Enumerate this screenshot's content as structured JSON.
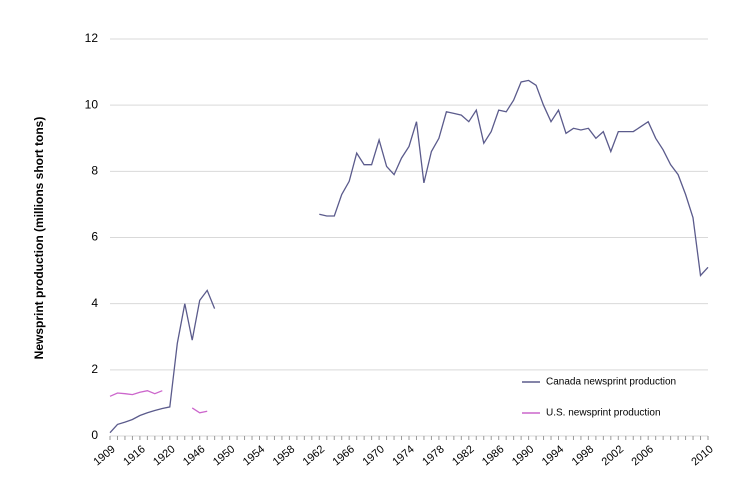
{
  "chart_data": {
    "type": "line",
    "y_label": "Newsprint  production (millions  short tons)",
    "categories": [
      "1909",
      null,
      null,
      null,
      "1916",
      null,
      null,
      null,
      "1920",
      null,
      null,
      null,
      "1946",
      null,
      null,
      null,
      "1950",
      null,
      null,
      null,
      "1954",
      null,
      null,
      null,
      "1958",
      null,
      null,
      null,
      "1962",
      null,
      null,
      null,
      "1966",
      null,
      null,
      null,
      "1970",
      null,
      null,
      null,
      "1974",
      null,
      null,
      null,
      "1978",
      null,
      null,
      null,
      "1982",
      null,
      null,
      null,
      "1986",
      null,
      null,
      null,
      "1990",
      null,
      null,
      null,
      "1994",
      null,
      null,
      null,
      "1998",
      null,
      null,
      null,
      "2002",
      null,
      null,
      null,
      "2006",
      null,
      null,
      null,
      null,
      null,
      null,
      null,
      "2010"
    ],
    "series": [
      {
        "name": "Canada newsprint production",
        "color": "#5b5b8c",
        "values": [
          0.1,
          0.35,
          0.42,
          0.5,
          0.62,
          0.7,
          0.77,
          0.83,
          0.88,
          2.8,
          4.0,
          2.9,
          4.1,
          4.4,
          3.85,
          null,
          null,
          null,
          null,
          null,
          null,
          null,
          null,
          null,
          null,
          null,
          null,
          null,
          6.7,
          6.65,
          6.65,
          7.3,
          7.7,
          8.55,
          8.2,
          8.2,
          8.95,
          8.15,
          7.9,
          8.4,
          8.75,
          9.5,
          7.65,
          8.6,
          9.0,
          9.8,
          9.75,
          9.7,
          9.5,
          9.85,
          8.85,
          9.2,
          9.85,
          9.8,
          10.15,
          10.7,
          10.75,
          10.6,
          10.0,
          9.5,
          9.85,
          9.15,
          9.3,
          9.25,
          9.3,
          9.0,
          9.2,
          8.6,
          9.2,
          9.2,
          9.2,
          9.35,
          9.5,
          9.0,
          8.65,
          8.2,
          7.9,
          7.3,
          6.6,
          4.85,
          5.1
        ]
      },
      {
        "name": "U.S. newsprint production",
        "color": "#cc66cc",
        "values": [
          1.2,
          1.3,
          1.28,
          1.25,
          1.32,
          1.37,
          1.28,
          1.37,
          null,
          null,
          null,
          0.85,
          0.7,
          0.75,
          null,
          null,
          null,
          null,
          null,
          null,
          null,
          null,
          null,
          null,
          null,
          null,
          null,
          null,
          null,
          null,
          null,
          null,
          null,
          null,
          null,
          null,
          null,
          null,
          null,
          null,
          null,
          null,
          null,
          null,
          null,
          null,
          null,
          null,
          null,
          null,
          null,
          null,
          null,
          null,
          null,
          null,
          null,
          null,
          null,
          null,
          null,
          null,
          null,
          null,
          null,
          null,
          null,
          null,
          null,
          null,
          null,
          null,
          null,
          null,
          null,
          null,
          null,
          null,
          null,
          null,
          null
        ]
      }
    ],
    "ylim": [
      0,
      12
    ],
    "yticks": [
      0,
      2,
      4,
      6,
      8,
      10,
      12
    ],
    "grid": true
  }
}
